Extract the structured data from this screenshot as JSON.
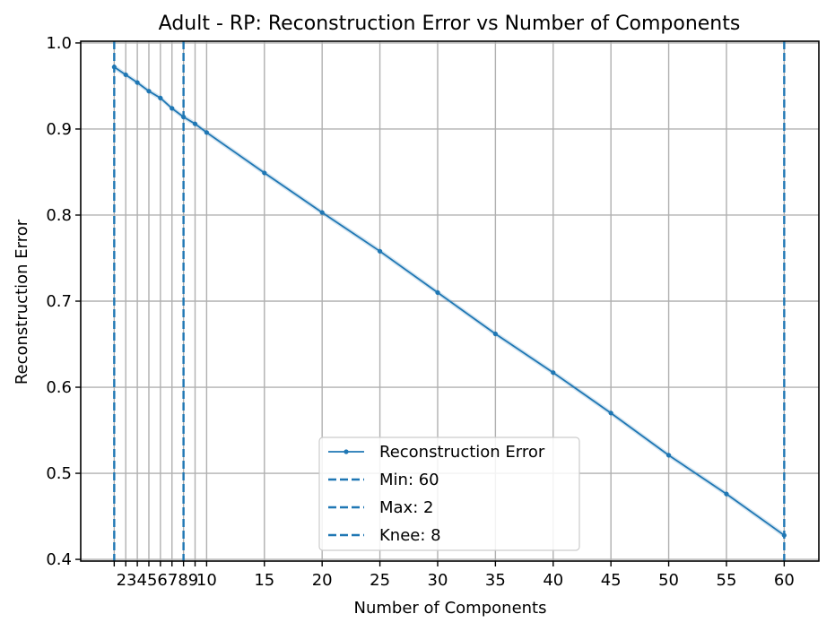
{
  "chart_data": {
    "type": "line",
    "title": "Adult - RP: Reconstruction Error vs Number of Components",
    "xlabel": "Number of Components",
    "ylabel": "Reconstruction Error",
    "xlim": [
      -0.9,
      63
    ],
    "ylim": [
      0.398,
      1.002
    ],
    "x_ticks": [
      2,
      3,
      4,
      5,
      6,
      7,
      8,
      9,
      10,
      15,
      20,
      25,
      30,
      35,
      40,
      45,
      50,
      55,
      60
    ],
    "x_tick_labels": [
      "2",
      "3",
      "4",
      "5",
      "6",
      "7",
      "8",
      "9",
      "10",
      "15",
      "20",
      "25",
      "30",
      "35",
      "40",
      "45",
      "50",
      "55",
      "60"
    ],
    "x_tick_labels_text": [
      "23456789",
      "10",
      "15",
      "20",
      "25",
      "30",
      "35",
      "40",
      "45",
      "50",
      "55",
      "60"
    ],
    "y_ticks": [
      0.4,
      0.5,
      0.6,
      0.7,
      0.8,
      0.9,
      1.0
    ],
    "y_tick_labels": [
      "0.4",
      "0.5",
      "0.6",
      "0.7",
      "0.8",
      "0.9",
      "1.0"
    ],
    "grid": true,
    "legend_position": "lower-center",
    "series": [
      {
        "name": "Reconstruction Error",
        "color": "#1f77b4",
        "x": [
          2,
          3,
          4,
          5,
          6,
          7,
          8,
          9,
          10,
          15,
          20,
          25,
          30,
          35,
          40,
          45,
          50,
          55,
          60
        ],
        "y": [
          0.972,
          0.963,
          0.954,
          0.944,
          0.936,
          0.924,
          0.914,
          0.906,
          0.896,
          0.849,
          0.803,
          0.758,
          0.71,
          0.662,
          0.617,
          0.57,
          0.521,
          0.476,
          0.428
        ],
        "band": 0.003
      }
    ],
    "reference_lines": [
      {
        "name": "Min: 60",
        "x": 60,
        "color": "#1f77b4",
        "style": "dashed"
      },
      {
        "name": "Max: 2",
        "x": 2,
        "color": "#1f77b4",
        "style": "dashed"
      },
      {
        "name": "Knee: 8",
        "x": 8,
        "color": "#1f77b4",
        "style": "dashed"
      }
    ]
  }
}
